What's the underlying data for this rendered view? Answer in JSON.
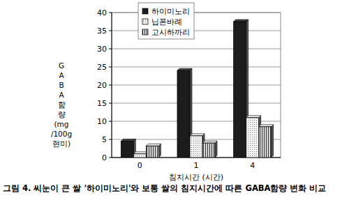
{
  "chart_data": {
    "type": "bar",
    "title": "그림 4. 씨눈이 큰 쌀 '하이미노리'와 보통 쌀의 침지시간에 따른 GABA함량 변화 비교",
    "x_label": "침지시간 (시간)",
    "y_label": "GABA함량(mg/100g현미)",
    "categories": [
      "0",
      "1",
      "4"
    ],
    "series": [
      {
        "name": "하이미노리",
        "color": "#1c1c1c",
        "values": [
          4.5,
          24,
          37.5
        ]
      },
      {
        "name": "닙폰바례",
        "color": "#f4f4f4",
        "values": [
          1,
          6,
          11
        ]
      },
      {
        "name": "고시하까리",
        "color": "#d8d8d8",
        "values": [
          3.2,
          4,
          8.5
        ]
      }
    ],
    "ylim": [
      0,
      40
    ],
    "yticks": [
      0,
      5,
      10,
      15,
      20,
      25,
      30,
      35,
      40
    ],
    "grid": true,
    "legend": "upper left"
  }
}
